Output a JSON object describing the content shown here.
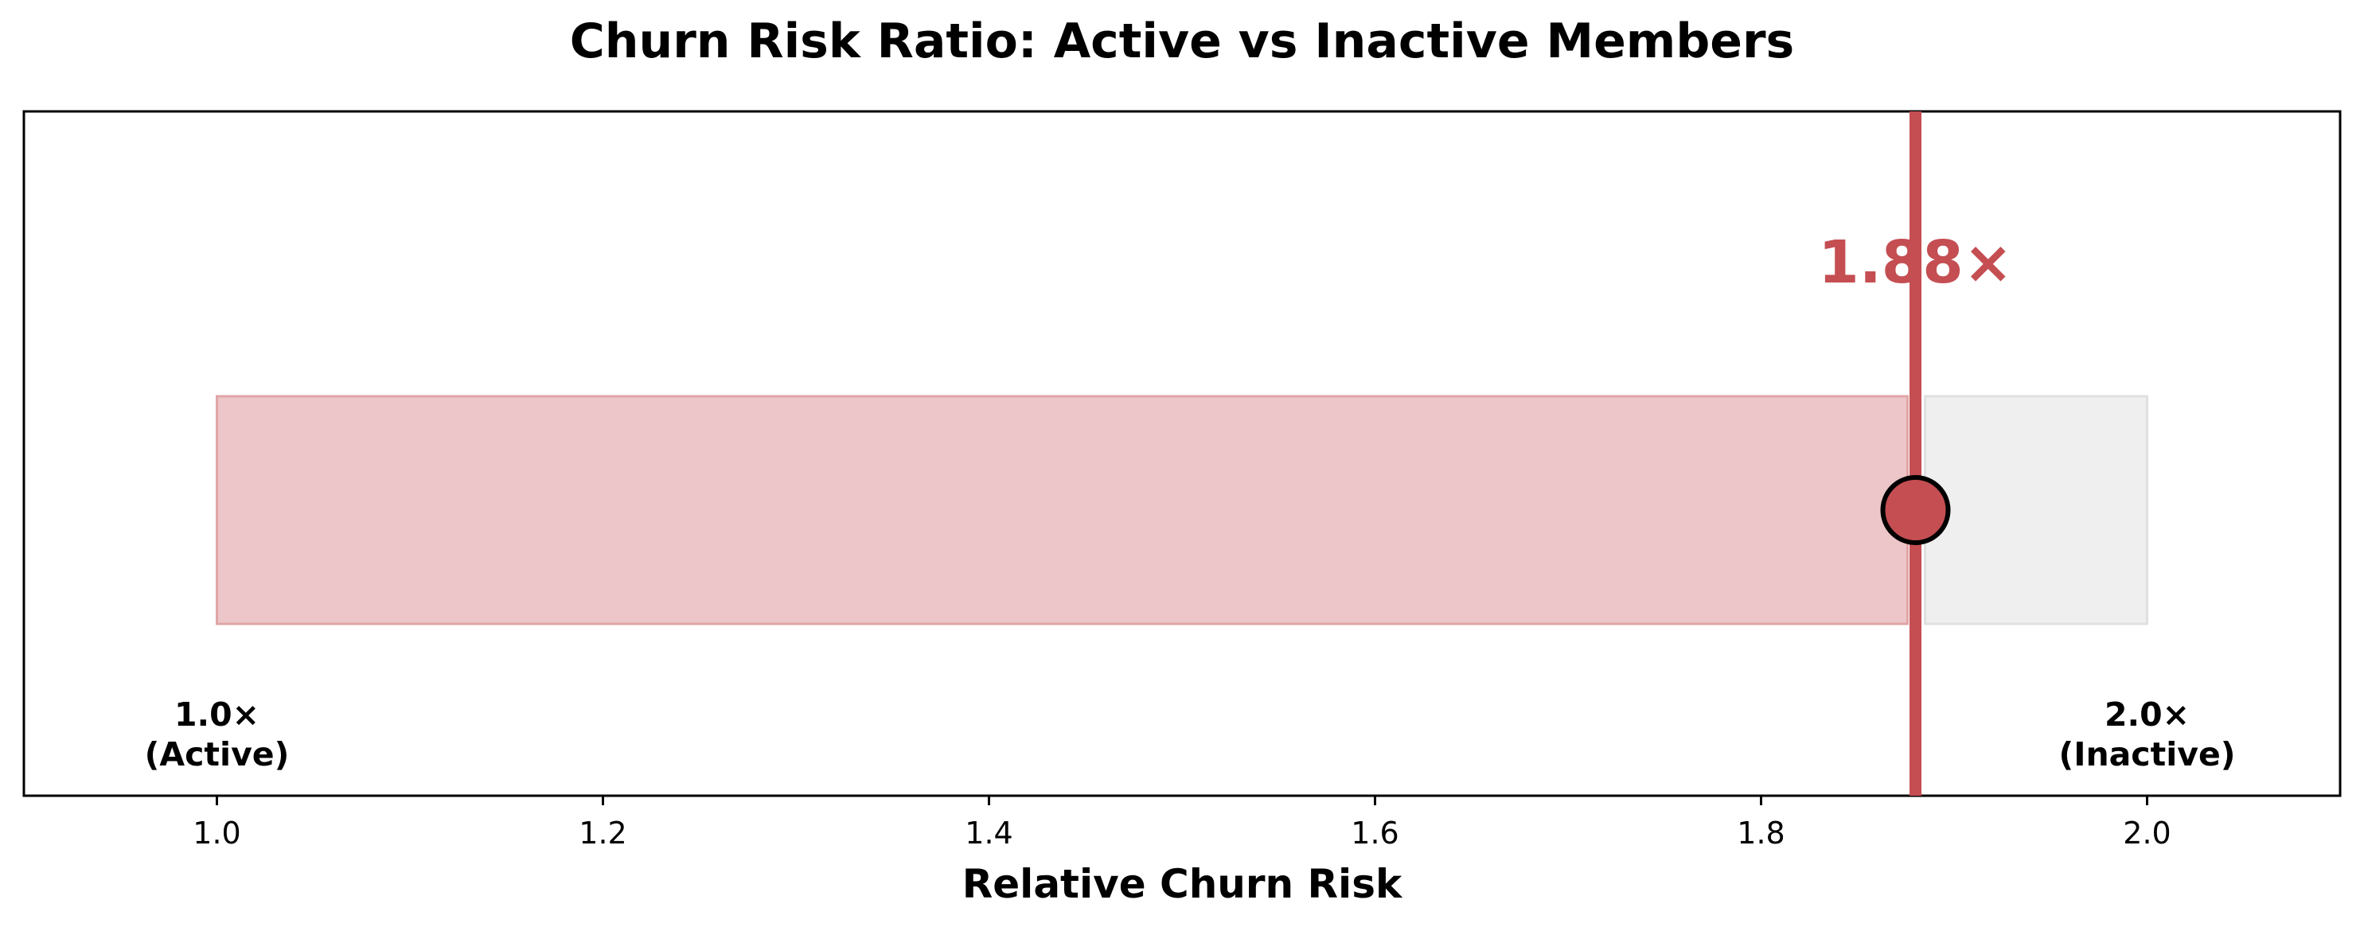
{
  "chart_data": {
    "type": "bar",
    "title": "Churn Risk Ratio: Active vs Inactive Members",
    "xlabel": "Relative Churn Risk",
    "ylabel": "",
    "xlim": [
      0.9,
      2.1
    ],
    "xticks": [
      1.0,
      1.2,
      1.4,
      1.6,
      1.8,
      2.0
    ],
    "xtick_labels": [
      "1.0",
      "1.2",
      "1.4",
      "1.6",
      "1.8",
      "2.0"
    ],
    "orientation": "horizontal",
    "baseline": 1.0,
    "max": 2.0,
    "value": 1.88,
    "value_label": "1.88×",
    "end_labels": [
      {
        "x": 1.0,
        "line1": "1.0×",
        "line2": "(Active)"
      },
      {
        "x": 2.0,
        "line1": "2.0×",
        "line2": "(Inactive)"
      }
    ],
    "grid": false,
    "legend": "none",
    "colors": {
      "accent": "#c44e52",
      "filled_bar": "#ecc6c8",
      "filled_bar_edge": "#e1a5a7",
      "remaining_bar": "#efefef",
      "remaining_bar_edge": "#e0e0e0",
      "frame": "#000000"
    }
  }
}
